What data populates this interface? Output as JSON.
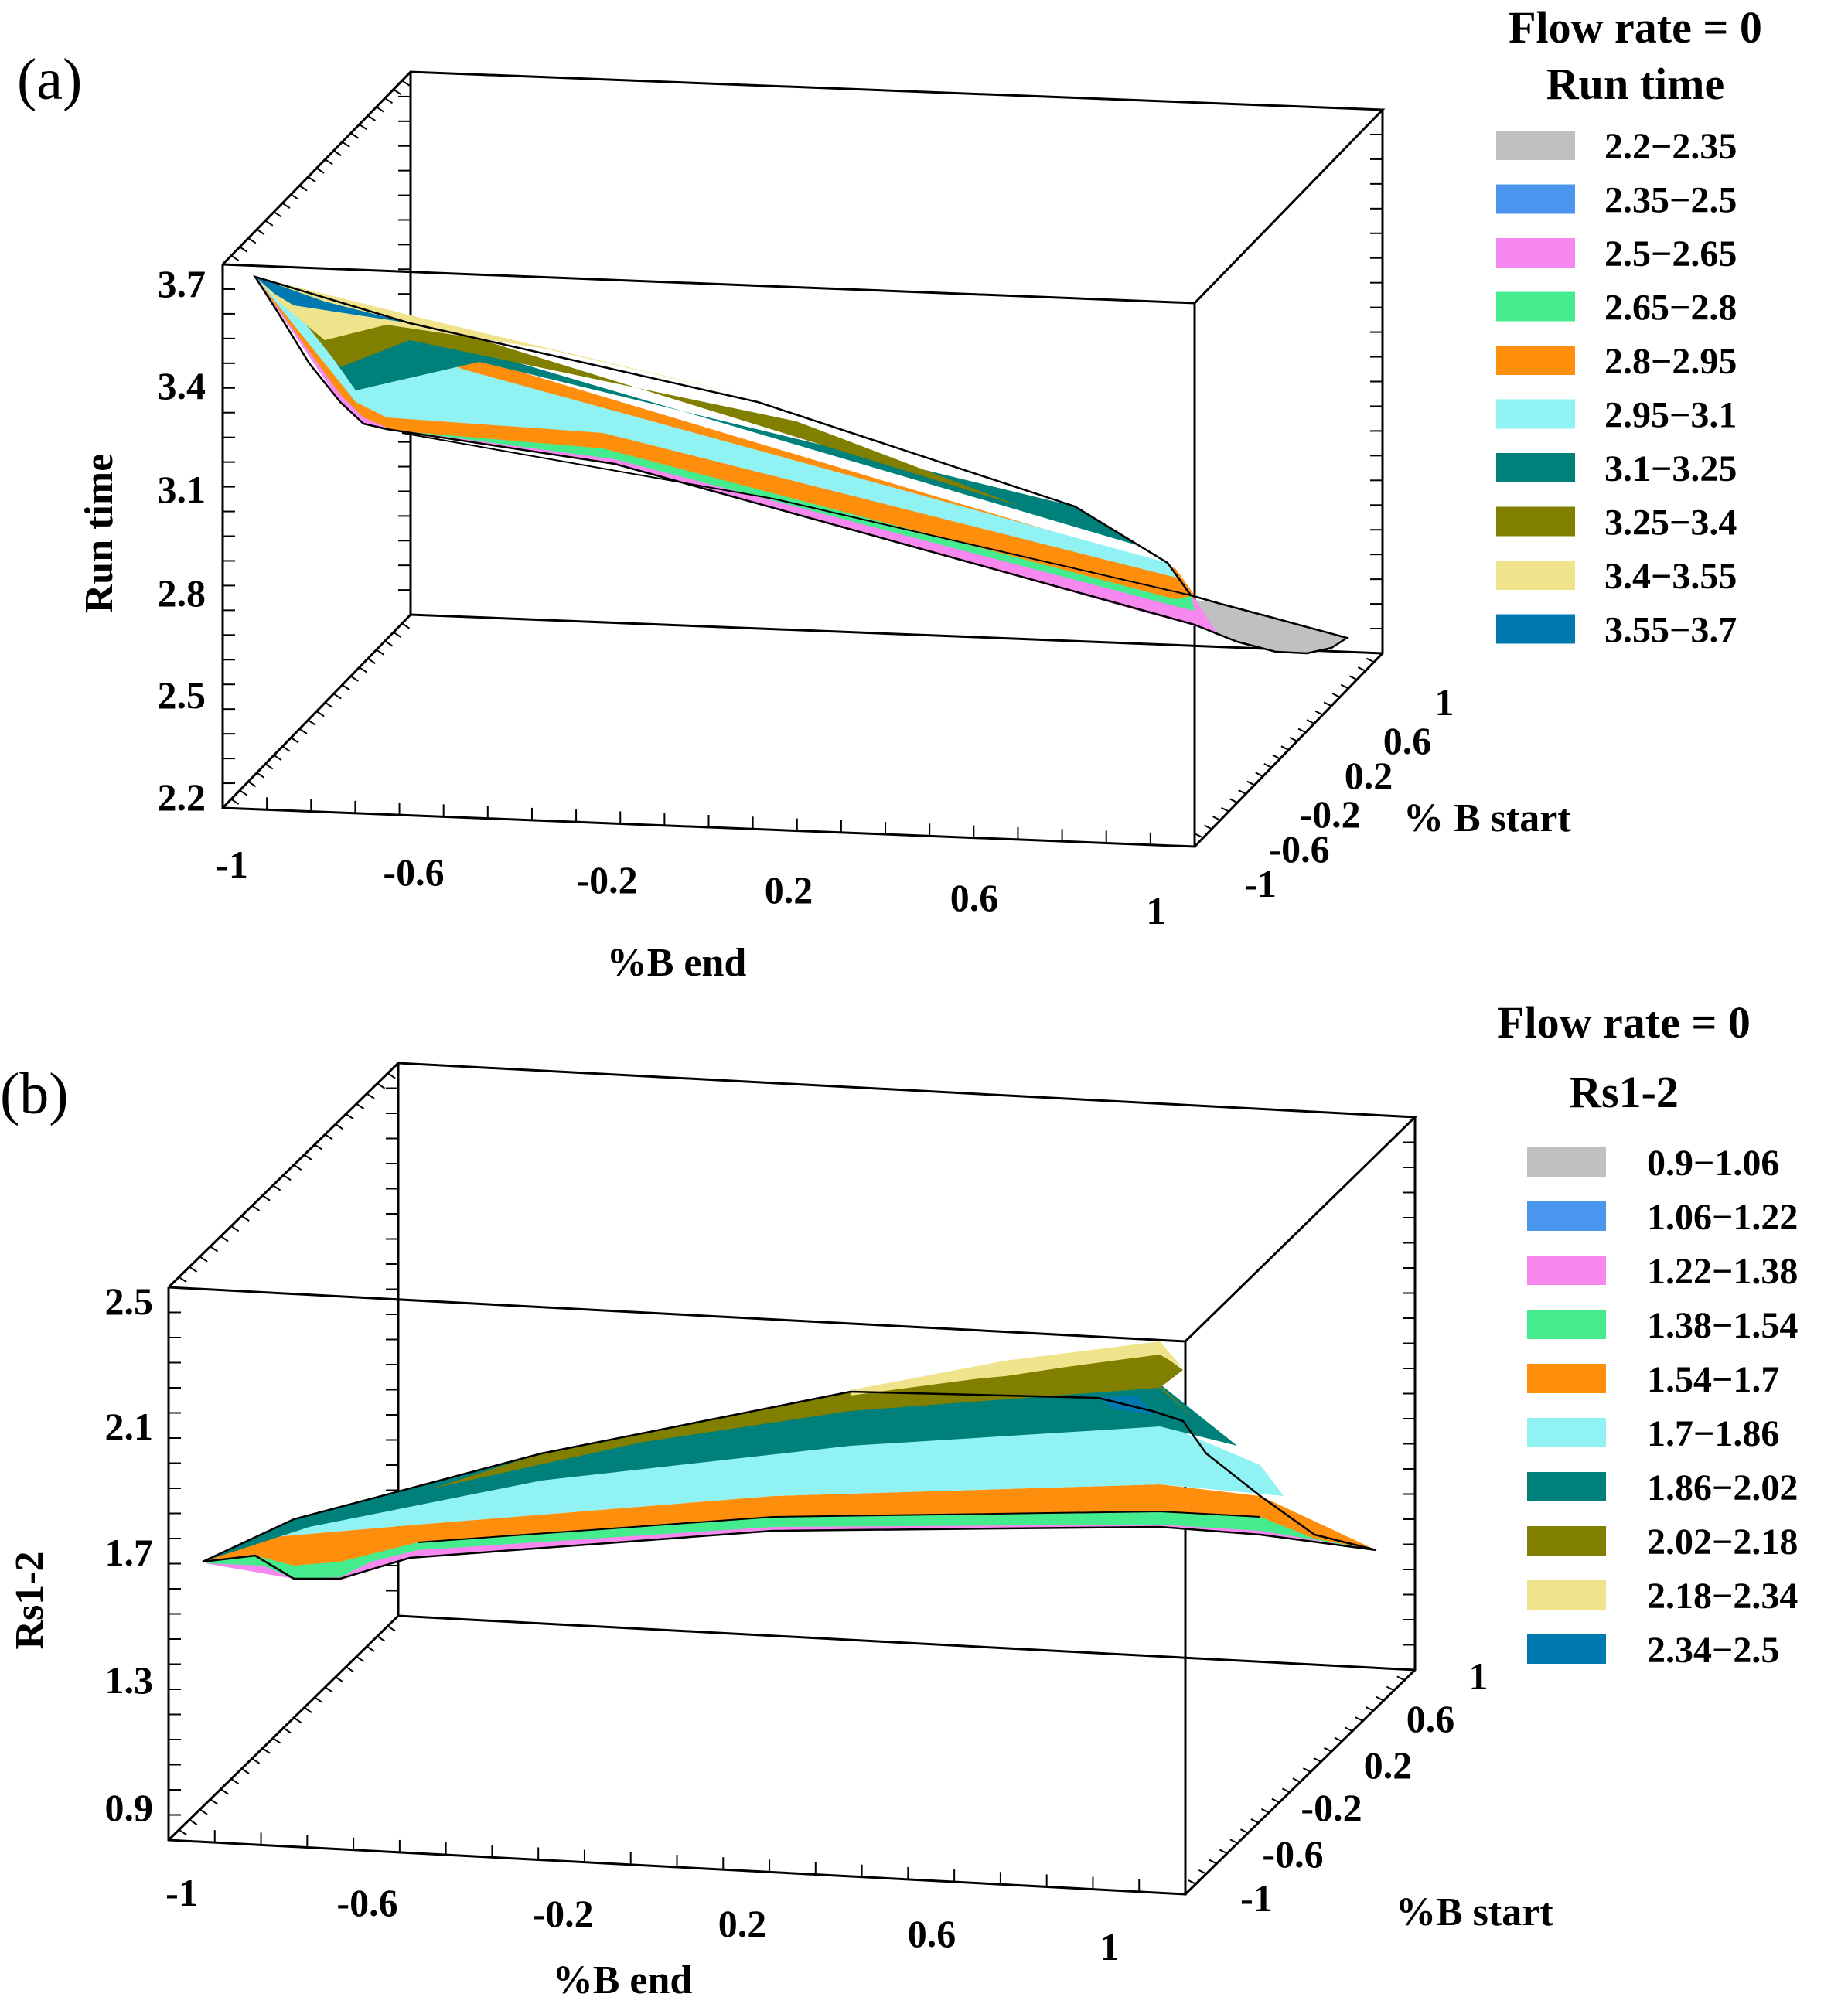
{
  "chart_data": [
    {
      "panel": "(a)",
      "type": "surface3d",
      "title": "Flow rate = 0",
      "legend_title": "Run time",
      "xlabel": "%B end",
      "ylabel": "% B start",
      "zlabel": "Run time",
      "x_ticks": [
        "-1",
        "-0.6",
        "-0.2",
        "0.2",
        "0.6",
        "1"
      ],
      "y_ticks": [
        "-1",
        "-0.6",
        "-0.2",
        "0.2",
        "0.6",
        "1"
      ],
      "z_ticks": [
        "3.7",
        "3.4",
        "3.1",
        "2.8",
        "2.5",
        "2.2"
      ],
      "zlim": [
        2.2,
        3.7
      ],
      "contour_bands": [
        {
          "range": "2.2−2.35",
          "color": "#c0c0c0"
        },
        {
          "range": "2.35−2.5",
          "color": "#4a96ee"
        },
        {
          "range": "2.5−2.65",
          "color": "#f788f0"
        },
        {
          "range": "2.65−2.8",
          "color": "#45ec8e"
        },
        {
          "range": "2.8−2.95",
          "color": "#ff8e0d"
        },
        {
          "range": "2.95−3.1",
          "color": "#90f2f2"
        },
        {
          "range": "3.1−3.25",
          "color": "#00807b"
        },
        {
          "range": "3.25−3.4",
          "color": "#807f00"
        },
        {
          "range": "3.4−3.55",
          "color": "#efe48c"
        },
        {
          "range": "3.55−3.7",
          "color": "#0079b0"
        }
      ]
    },
    {
      "panel": "(b)",
      "type": "surface3d",
      "title": "Flow rate = 0",
      "legend_title": "Rs1-2",
      "xlabel": "%B end",
      "ylabel": "%B start",
      "zlabel": "Rs1-2",
      "x_ticks": [
        "-1",
        "-0.6",
        "-0.2",
        "0.2",
        "0.6",
        "1"
      ],
      "y_ticks": [
        "-1",
        "-0.6",
        "-0.2",
        "0.2",
        "0.6",
        "1"
      ],
      "z_ticks": [
        "2.5",
        "2.1",
        "1.7",
        "1.3",
        "0.9"
      ],
      "zlim": [
        0.9,
        2.5
      ],
      "contour_bands": [
        {
          "range": "0.9−1.06",
          "color": "#c0c0c0"
        },
        {
          "range": "1.06−1.22",
          "color": "#4a96ee"
        },
        {
          "range": "1.22−1.38",
          "color": "#f788f0"
        },
        {
          "range": "1.38−1.54",
          "color": "#45ec8e"
        },
        {
          "range": "1.54−1.7",
          "color": "#ff8e0d"
        },
        {
          "range": "1.7−1.86",
          "color": "#90f2f2"
        },
        {
          "range": "1.86−2.02",
          "color": "#00807b"
        },
        {
          "range": "2.02−2.18",
          "color": "#807f00"
        },
        {
          "range": "2.18−2.34",
          "color": "#efe48c"
        },
        {
          "range": "2.34−2.5",
          "color": "#0079b0"
        }
      ]
    }
  ]
}
